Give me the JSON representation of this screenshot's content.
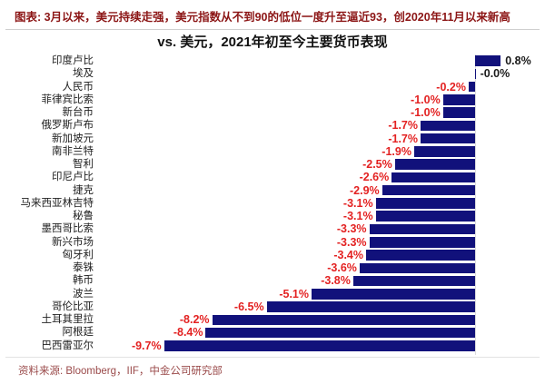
{
  "header": {
    "note": "图表: 3月以来，美元持续走强，美元指数从不到90的低位一度升至逼近93，创2020年11月以来新高"
  },
  "chart_data": {
    "type": "bar",
    "orientation": "horizontal",
    "title": "vs. 美元，2021年初至今主要货币表现",
    "categories": [
      "印度卢比",
      "埃及",
      "人民币",
      "菲律宾比索",
      "新台币",
      "俄罗斯卢布",
      "新加坡元",
      "南非兰特",
      "智利",
      "印尼卢比",
      "捷克",
      "马来西亚林吉特",
      "秘鲁",
      "墨西哥比索",
      "新兴市场",
      "匈牙利",
      "泰铢",
      "韩币",
      "波兰",
      "哥伦比亚",
      "土耳其里拉",
      "阿根廷",
      "巴西雷亚尔"
    ],
    "values": [
      0.8,
      -0.0,
      -0.2,
      -1.0,
      -1.0,
      -1.7,
      -1.7,
      -1.9,
      -2.5,
      -2.6,
      -2.9,
      -3.1,
      -3.1,
      -3.3,
      -3.3,
      -3.4,
      -3.6,
      -3.8,
      -5.1,
      -6.5,
      -8.2,
      -8.4,
      -9.7
    ],
    "value_labels": [
      "0.8%",
      "-0.0%",
      "-0.2%",
      "-1.0%",
      "-1.0%",
      "-1.7%",
      "-1.7%",
      "-1.9%",
      "-2.5%",
      "-2.6%",
      "-2.9%",
      "-3.1%",
      "-3.1%",
      "-3.3%",
      "-3.3%",
      "-3.4%",
      "-3.6%",
      "-3.8%",
      "-5.1%",
      "-6.5%",
      "-8.2%",
      "-8.4%",
      "-9.7%"
    ],
    "xlim": [
      -10,
      1
    ],
    "grid": false,
    "legend": false,
    "unit": "%",
    "colors": {
      "bar": "#11117b",
      "negative_label": "#e32222",
      "positive_label": "#1a1a1a",
      "header_text": "#8c1616",
      "source_text": "#9a4a4a",
      "axis_line": "#dcdcdc"
    }
  },
  "source": {
    "text": "资料来源: Bloomberg，IIF，中金公司研究部"
  }
}
